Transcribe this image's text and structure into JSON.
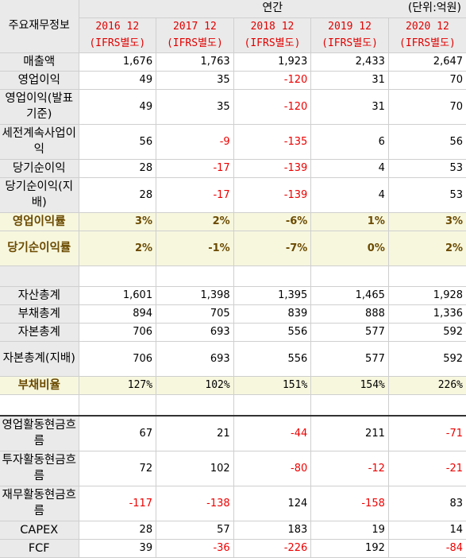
{
  "header": {
    "category": "주요재무정보",
    "period": "연간",
    "unit": "(단위:억원)",
    "years": [
      {
        "period": "2016 12",
        "basis": "(IFRS별도)"
      },
      {
        "period": "2017 12",
        "basis": "(IFRS별도)"
      },
      {
        "period": "2018 12",
        "basis": "(IFRS별도)"
      },
      {
        "period": "2019 12",
        "basis": "(IFRS별도)"
      },
      {
        "period": "2020 12",
        "basis": "(IFRS별도)"
      }
    ]
  },
  "rows": {
    "revenue": {
      "label": "매출액",
      "values": [
        "1,676",
        "1,763",
        "1,923",
        "2,433",
        "2,647"
      ]
    },
    "op_income": {
      "label": "영업이익",
      "values": [
        "49",
        "35",
        "-120",
        "31",
        "70"
      ]
    },
    "op_income_reported": {
      "label": "영업이익(발표기준)",
      "values": [
        "49",
        "35",
        "-120",
        "31",
        "70"
      ]
    },
    "pretax_income": {
      "label": "세전계속사업이익",
      "values": [
        "56",
        "-9",
        "-135",
        "6",
        "56"
      ]
    },
    "net_income": {
      "label": "당기순이익",
      "values": [
        "28",
        "-17",
        "-139",
        "4",
        "53"
      ]
    },
    "net_income_parent": {
      "label": "당기순이익(지배)",
      "values": [
        "28",
        "-17",
        "-139",
        "4",
        "53"
      ]
    },
    "op_margin": {
      "label": "영업이익률",
      "values": [
        "3%",
        "2%",
        "-6%",
        "1%",
        "3%"
      ]
    },
    "net_margin": {
      "label": "당기순이익률",
      "values": [
        "2%",
        "-1%",
        "-7%",
        "0%",
        "2%"
      ]
    },
    "total_assets": {
      "label": "자산총계",
      "values": [
        "1,601",
        "1,398",
        "1,395",
        "1,465",
        "1,928"
      ]
    },
    "total_liabilities": {
      "label": "부채총계",
      "values": [
        "894",
        "705",
        "839",
        "888",
        "1,336"
      ]
    },
    "total_equity": {
      "label": "자본총계",
      "values": [
        "706",
        "693",
        "556",
        "577",
        "592"
      ]
    },
    "total_equity_parent": {
      "label": "자본총계(지배)",
      "values": [
        "706",
        "693",
        "556",
        "577",
        "592"
      ]
    },
    "debt_ratio": {
      "label": "부채비율",
      "values": [
        "127%",
        "102%",
        "151%",
        "154%",
        "226%"
      ]
    },
    "cfo": {
      "label": "영업활동현금흐름",
      "values": [
        "67",
        "21",
        "-44",
        "211",
        "-71"
      ]
    },
    "cfi": {
      "label": "투자활동현금흐름",
      "values": [
        "72",
        "102",
        "-80",
        "-12",
        "-21"
      ]
    },
    "cff": {
      "label": "재무활동현금흐름",
      "values": [
        "-117",
        "-138",
        "124",
        "-158",
        "83"
      ]
    },
    "capex": {
      "label": "CAPEX",
      "values": [
        "28",
        "57",
        "183",
        "19",
        "14"
      ]
    },
    "fcf": {
      "label": "FCF",
      "values": [
        "39",
        "-36",
        "-226",
        "192",
        "-84"
      ]
    }
  },
  "colors": {
    "negative": "#ee0000",
    "header_red": "#e10000",
    "ratio_text": "#6b4a00",
    "highlight_bg": "#f7f7de",
    "label_bg": "#eaeaea"
  }
}
